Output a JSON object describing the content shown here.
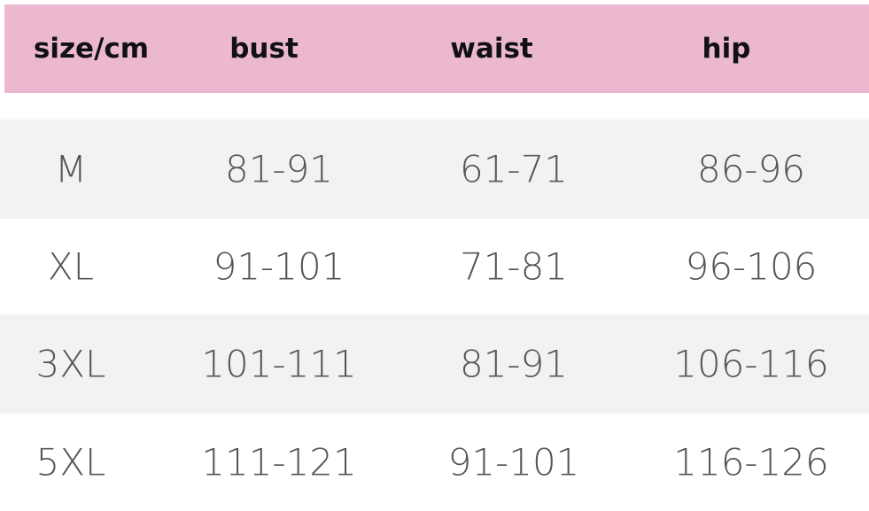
{
  "table": {
    "header": [
      "size/cm",
      "bust",
      "waist",
      "hip"
    ],
    "rows": [
      [
        "M",
        "81-91",
        "61-71",
        "86-96"
      ],
      [
        "XL",
        "91-101",
        "71-81",
        "96-106"
      ],
      [
        "3XL",
        "101-111",
        "81-91",
        "106-116"
      ],
      [
        "5XL",
        "111-121",
        "91-101",
        "116-126"
      ]
    ]
  }
}
